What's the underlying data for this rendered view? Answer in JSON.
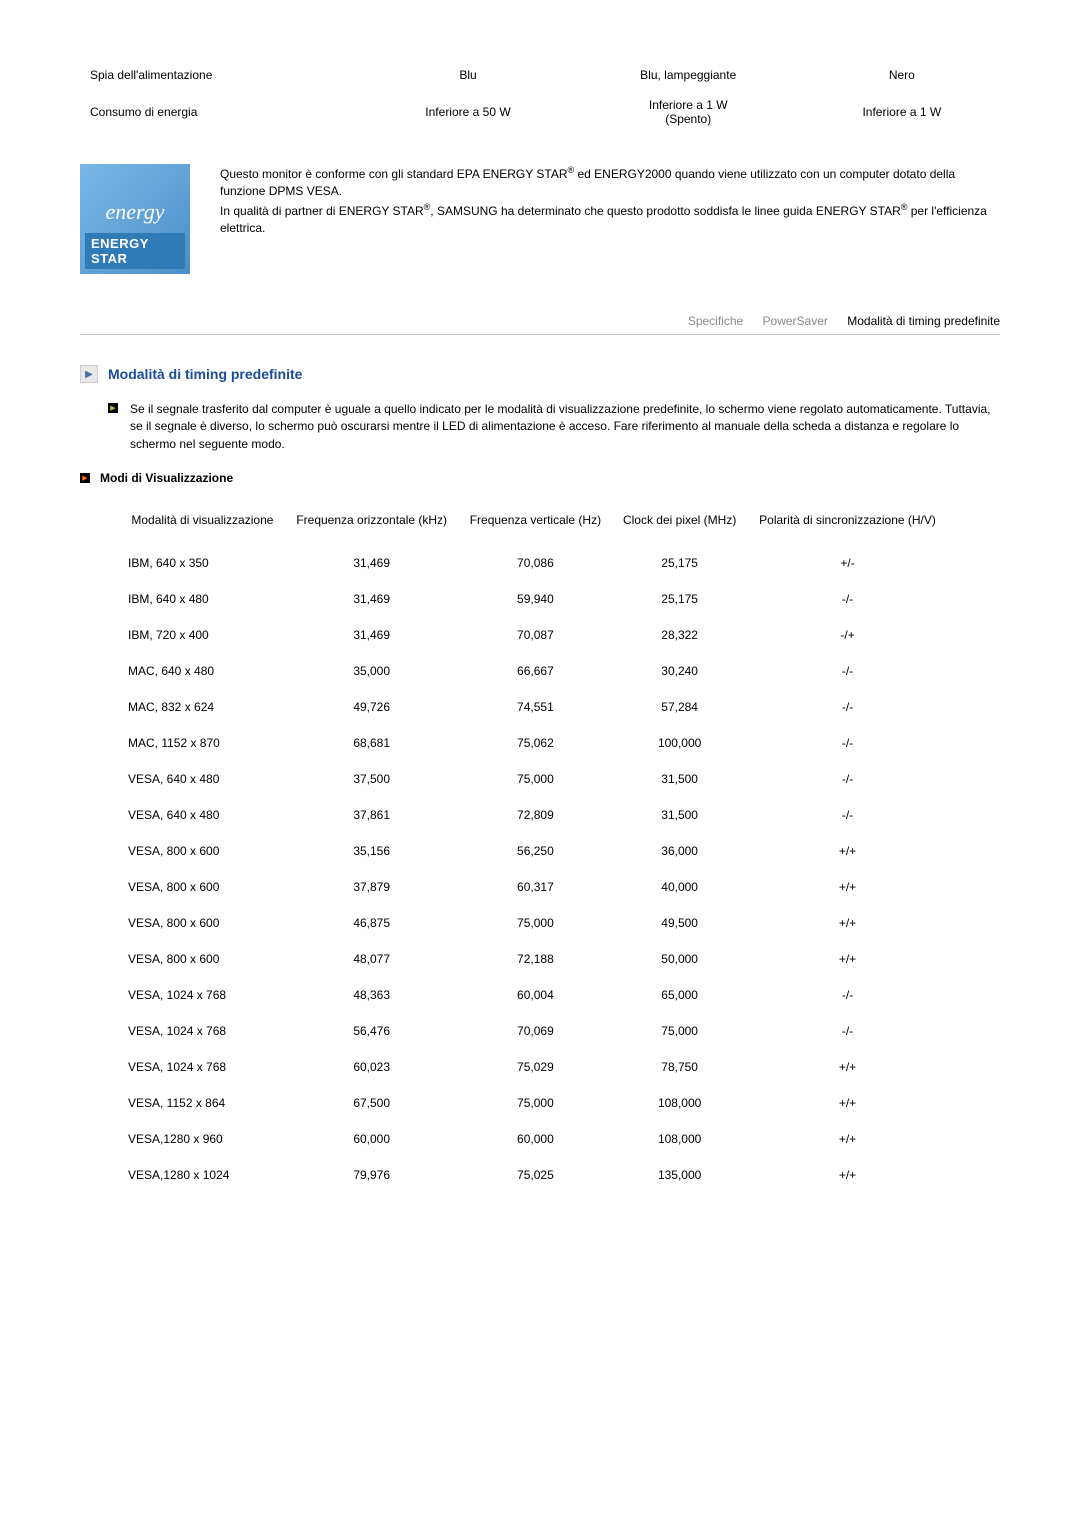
{
  "top_table": {
    "rows": [
      [
        "Spia dell'alimentazione",
        "Blu",
        "Blu, lampeggiante",
        "Nero"
      ],
      [
        "Consumo di energia",
        "Inferiore a 50 W",
        "Inferiore a 1 W\n(Spento)",
        "Inferiore a 1 W"
      ]
    ]
  },
  "energy_badge": {
    "script": "energy",
    "bar": "ENERGY STAR"
  },
  "energy_desc": {
    "line1a": "Questo monitor è conforme con gli standard EPA ENERGY STAR",
    "sup": "®",
    "line1b": " ed ENERGY2000 quando viene utilizzato con un computer dotato della funzione DPMS VESA.",
    "line2a": "In qualità di partner di ENERGY STAR",
    "line2b": ", SAMSUNG ha determinato che questo prodotto soddisfa le linee guida ENERGY STAR",
    "line2c": " per l'efficienza elettrica."
  },
  "tabs": {
    "t1": "Specifiche",
    "t2": "PowerSaver",
    "t3": "Modalità di timing predefinite"
  },
  "section": {
    "title": "Modalità di timing predefinite",
    "bullet": "Se il segnale trasferito dal computer è uguale a quello indicato per le modalità di visualizzazione predefinite, lo schermo viene regolato automaticamente. Tuttavia, se il segnale è diverso, lo schermo può oscurarsi mentre il LED di alimentazione è acceso. Fare riferimento al manuale della scheda a distanza e regolare lo schermo nel seguente modo.",
    "sub_title": "Modi di Visualizzazione"
  },
  "modes_table": {
    "headers": [
      "Modalità di visualizzazione",
      "Frequenza orizzontale (kHz)",
      "Frequenza verticale (Hz)",
      "Clock dei pixel (MHz)",
      "Polarità di sincronizzazione (H/V)"
    ],
    "rows": [
      [
        "IBM, 640 x 350",
        "31,469",
        "70,086",
        "25,175",
        "+/-"
      ],
      [
        "IBM, 640 x 480",
        "31,469",
        "59,940",
        "25,175",
        "-/-"
      ],
      [
        "IBM, 720 x 400",
        "31,469",
        "70,087",
        "28,322",
        "-/+"
      ],
      [
        "MAC, 640 x 480",
        "35,000",
        "66,667",
        "30,240",
        "-/-"
      ],
      [
        "MAC, 832 x 624",
        "49,726",
        "74,551",
        "57,284",
        "-/-"
      ],
      [
        "MAC, 1152 x 870",
        "68,681",
        "75,062",
        "100,000",
        "-/-"
      ],
      [
        "VESA, 640 x 480",
        "37,500",
        "75,000",
        "31,500",
        "-/-"
      ],
      [
        "VESA, 640 x 480",
        "37,861",
        "72,809",
        "31,500",
        "-/-"
      ],
      [
        "VESA, 800 x 600",
        "35,156",
        "56,250",
        "36,000",
        "+/+"
      ],
      [
        "VESA, 800 x 600",
        "37,879",
        "60,317",
        "40,000",
        "+/+"
      ],
      [
        "VESA, 800 x 600",
        "46,875",
        "75,000",
        "49,500",
        "+/+"
      ],
      [
        "VESA, 800 x 600",
        "48,077",
        "72,188",
        "50,000",
        "+/+"
      ],
      [
        "VESA, 1024 x 768",
        "48,363",
        "60,004",
        "65,000",
        "-/-"
      ],
      [
        "VESA, 1024 x 768",
        "56,476",
        "70,069",
        "75,000",
        "-/-"
      ],
      [
        "VESA, 1024 x 768",
        "60,023",
        "75,029",
        "78,750",
        "+/+"
      ],
      [
        "VESA, 1152 x 864",
        "67,500",
        "75,000",
        "108,000",
        "+/+"
      ],
      [
        "VESA,1280 x 960",
        "60,000",
        "60,000",
        "108,000",
        "+/+"
      ],
      [
        "VESA,1280 x 1024",
        "79,976",
        "75,025",
        "135,000",
        "+/+"
      ]
    ]
  }
}
